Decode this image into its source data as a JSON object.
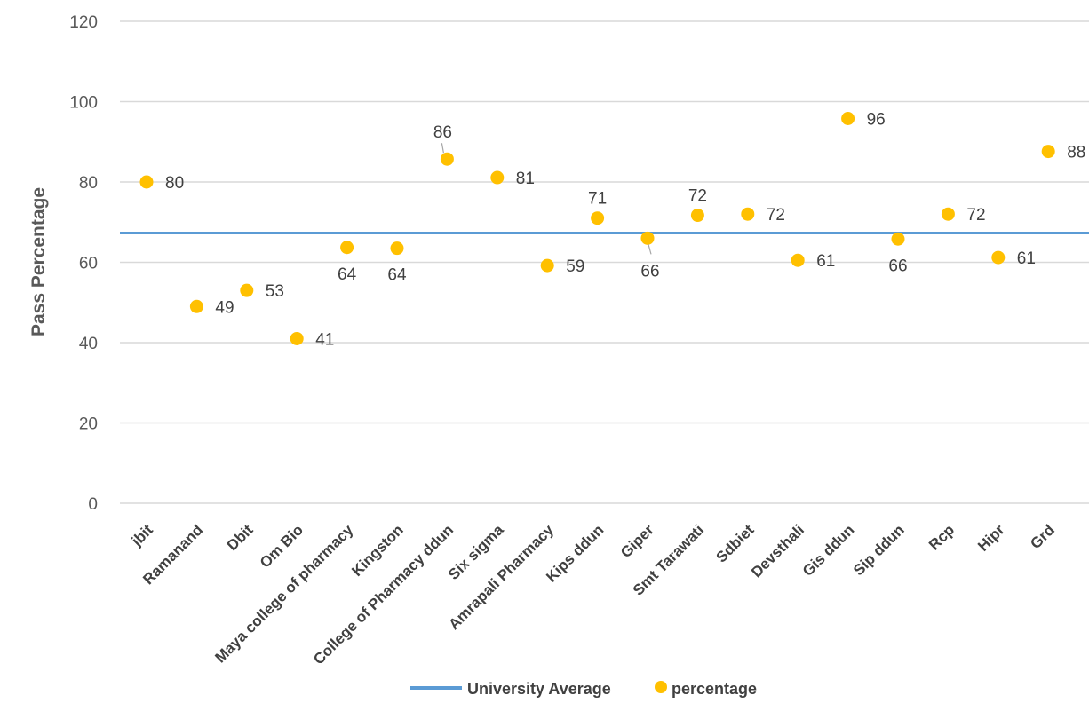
{
  "chart_data": {
    "type": "scatter",
    "title": "",
    "xlabel": "",
    "ylabel": "Pass Percentage",
    "ylim": [
      0,
      120
    ],
    "yticks": [
      0,
      20,
      40,
      60,
      80,
      100,
      120
    ],
    "grid": true,
    "legend_position": "bottom",
    "categories": [
      "jbit",
      "Ramanand",
      "Dbit",
      "Om Bio",
      "Maya college of pharmacy",
      "Kingston",
      "College of Pharmacy ddun",
      "Six sigma",
      "Amrapali Pharmacy",
      "Kips ddun",
      "Giper",
      "Smt Tarawati",
      "Sdbiet",
      "Devsthali",
      "Gis ddun",
      "Sip ddun",
      "Rcp",
      "Hipr",
      "Grd"
    ],
    "series": [
      {
        "name": "percentage",
        "type": "scatter",
        "color": "#FFC000",
        "values": [
          80,
          49,
          53,
          41,
          63.7,
          63.5,
          85.7,
          81.1,
          59.2,
          71,
          66,
          71.7,
          72,
          60.5,
          95.8,
          65.8,
          72,
          61.2,
          87.6
        ],
        "labels": [
          "80",
          "49",
          "53",
          "41",
          "64",
          "64",
          "86",
          "81",
          "59",
          "71",
          "66",
          "72",
          "72",
          "61",
          "96",
          "66",
          "72",
          "61",
          "88"
        ]
      },
      {
        "name": "University Average",
        "type": "line",
        "color": "#5B9BD5",
        "value": 67.3
      }
    ]
  }
}
